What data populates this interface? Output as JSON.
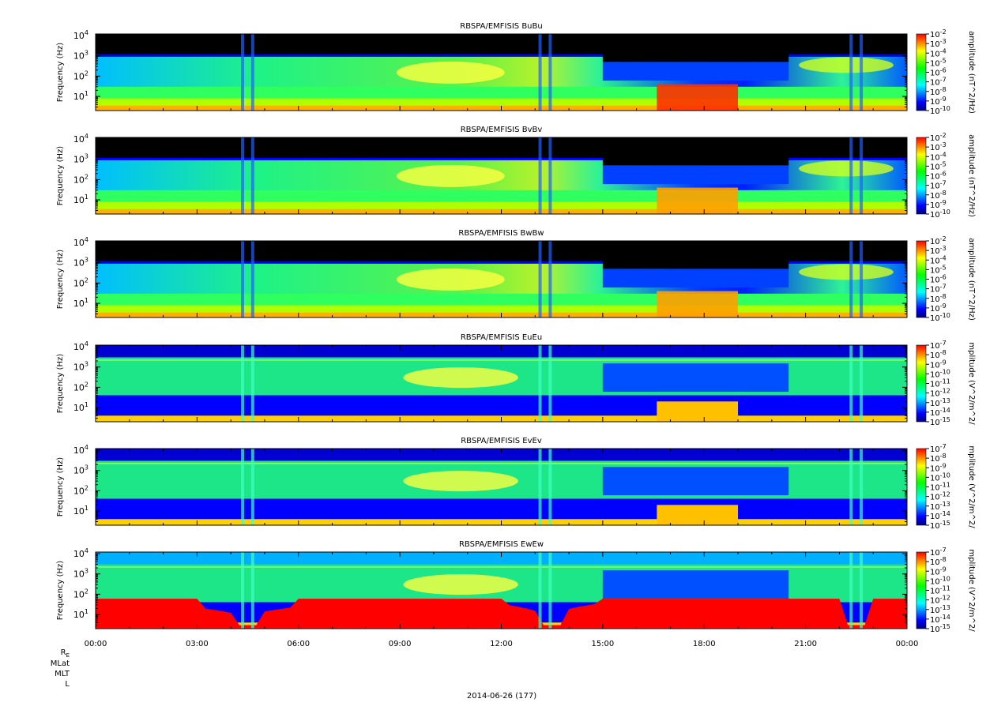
{
  "chart_data": [
    {
      "type": "heatmap",
      "title": "RBSPA/EMFISIS  BuBu",
      "ylabel": "Frequency (Hz)",
      "ytick_labels": [
        "10",
        "10",
        "10",
        "10"
      ],
      "ytick_exponents": [
        "1",
        "2",
        "3",
        "4"
      ],
      "ylim": [
        2,
        12000
      ],
      "yscale": "log",
      "colorbar_label": "amplitude (nT^2/Hz)",
      "colorbar_base": "10",
      "colorbar_exponents": [
        "-2",
        "-3",
        "-4",
        "-5",
        "-6",
        "-7",
        "-8",
        "-9",
        "-10"
      ],
      "zscale": "log",
      "zlim": [
        1e-10,
        0.01
      ]
    },
    {
      "type": "heatmap",
      "title": "RBSPA/EMFISIS  BvBv",
      "ylabel": "Frequency (Hz)",
      "ytick_labels": [
        "10",
        "10",
        "10",
        "10"
      ],
      "ytick_exponents": [
        "1",
        "2",
        "3",
        "4"
      ],
      "ylim": [
        2,
        12000
      ],
      "yscale": "log",
      "colorbar_label": "amplitude (nT^2/Hz)",
      "colorbar_base": "10",
      "colorbar_exponents": [
        "-2",
        "-3",
        "-4",
        "-5",
        "-6",
        "-7",
        "-8",
        "-9",
        "-10"
      ],
      "zscale": "log",
      "zlim": [
        1e-10,
        0.01
      ]
    },
    {
      "type": "heatmap",
      "title": "RBSPA/EMFISIS  BwBw",
      "ylabel": "Frequency (Hz)",
      "ytick_labels": [
        "10",
        "10",
        "10",
        "10"
      ],
      "ytick_exponents": [
        "1",
        "2",
        "3",
        "4"
      ],
      "ylim": [
        2,
        12000
      ],
      "yscale": "log",
      "colorbar_label": "amplitude (nT^2/Hz)",
      "colorbar_base": "10",
      "colorbar_exponents": [
        "-2",
        "-3",
        "-4",
        "-5",
        "-6",
        "-7",
        "-8",
        "-9",
        "-10"
      ],
      "zscale": "log",
      "zlim": [
        1e-10,
        0.01
      ]
    },
    {
      "type": "heatmap",
      "title": "RBSPA/EMFISIS  EuEu",
      "ylabel": "Frequency (Hz)",
      "ytick_labels": [
        "10",
        "10",
        "10",
        "10"
      ],
      "ytick_exponents": [
        "1",
        "2",
        "3",
        "4"
      ],
      "ylim": [
        2,
        12000
      ],
      "yscale": "log",
      "colorbar_label": "mplitude (V^2/m^2/",
      "colorbar_base": "10",
      "colorbar_exponents": [
        "-7",
        "-8",
        "-9",
        "-10",
        "-11",
        "-12",
        "-13",
        "-14",
        "-15"
      ],
      "zscale": "log",
      "zlim": [
        1e-15,
        1e-07
      ]
    },
    {
      "type": "heatmap",
      "title": "RBSPA/EMFISIS  EvEv",
      "ylabel": "Frequency (Hz)",
      "ytick_labels": [
        "10",
        "10",
        "10",
        "10"
      ],
      "ytick_exponents": [
        "1",
        "2",
        "3",
        "4"
      ],
      "ylim": [
        2,
        12000
      ],
      "yscale": "log",
      "colorbar_label": "mplitude (V^2/m^2/",
      "colorbar_base": "10",
      "colorbar_exponents": [
        "-7",
        "-8",
        "-9",
        "-10",
        "-11",
        "-12",
        "-13",
        "-14",
        "-15"
      ],
      "zscale": "log",
      "zlim": [
        1e-15,
        1e-07
      ]
    },
    {
      "type": "heatmap",
      "title": "RBSPA/EMFISIS  EwEw",
      "ylabel": "Frequency (Hz)",
      "ytick_labels": [
        "10",
        "10",
        "10",
        "10"
      ],
      "ytick_exponents": [
        "1",
        "2",
        "3",
        "4"
      ],
      "ylim": [
        2,
        12000
      ],
      "yscale": "log",
      "colorbar_label": "mplitude (V^2/m^2/",
      "colorbar_base": "10",
      "colorbar_exponents": [
        "-7",
        "-8",
        "-9",
        "-10",
        "-11",
        "-12",
        "-13",
        "-14",
        "-15"
      ],
      "zscale": "log",
      "zlim": [
        1e-15,
        1e-07
      ]
    }
  ],
  "xaxis": {
    "tick_labels": [
      "00:00",
      "03:00",
      "06:00",
      "09:00",
      "12:00",
      "15:00",
      "18:00",
      "21:00",
      "00:00"
    ],
    "xlim_hours": [
      0,
      24
    ]
  },
  "orbit_labels": {
    "re": "R",
    "re_sub": "E",
    "mlat": "MLat",
    "mlt": "MLT",
    "l": "L"
  },
  "date_label": "2014-06-26 (177)",
  "colormap": [
    "#000080",
    "#0000ff",
    "#0080ff",
    "#00ffff",
    "#00ff80",
    "#00ff00",
    "#80ff00",
    "#ffff00",
    "#ff8000",
    "#ff0000"
  ]
}
